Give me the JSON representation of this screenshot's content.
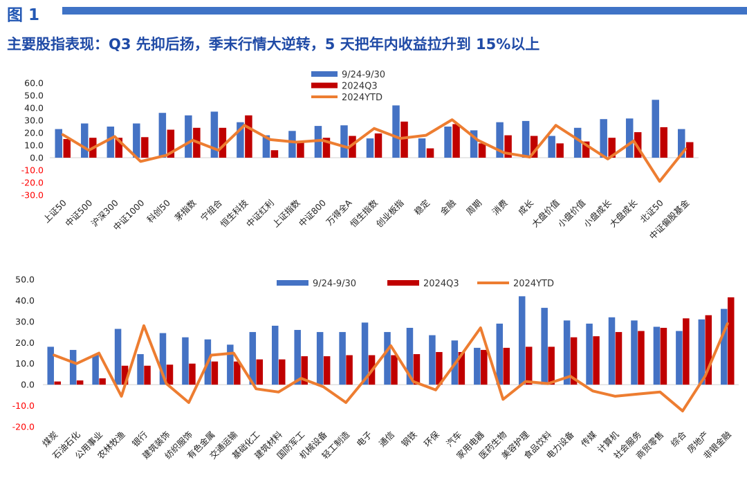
{
  "figure_label": "图 1",
  "headline": "主要股指表现：Q3 先抑后扬，季末行情大逆转，5 天把年内收益拉升到 15%以上",
  "colors": {
    "blue": "#4472C4",
    "red": "#C00000",
    "orange": "#ED7D31",
    "title": "#1F4AA6",
    "axis_red": "#FF0000"
  },
  "chart_data": [
    {
      "type": "bar",
      "ylim": [
        -30,
        60
      ],
      "yticks": [
        "60.0",
        "50.0",
        "40.0",
        "30.0",
        "20.0",
        "10.0",
        "0.0",
        "-10.0",
        "-20.0",
        "-30.0"
      ],
      "legend_position": "top-center",
      "categories": [
        "上证50",
        "中证500",
        "沪深300",
        "中证1000",
        "科创50",
        "茅指数",
        "宁组合",
        "恒生科技",
        "中证红利",
        "上证指数",
        "中证800",
        "万得全A",
        "恒生指数",
        "创业板指",
        "稳定",
        "金融",
        "周期",
        "消费",
        "成长",
        "大盘价值",
        "小盘价值",
        "小盘成长",
        "大盘成长",
        "北证50",
        "中证偏股基金"
      ],
      "series": [
        {
          "name": "9/24-9/30",
          "type": "bar",
          "values": [
            23.0,
            27.5,
            25.0,
            27.5,
            36.0,
            34.0,
            37.0,
            28.5,
            18.0,
            21.5,
            25.5,
            26.0,
            15.5,
            42.0,
            15.5,
            25.0,
            22.0,
            28.5,
            29.5,
            17.5,
            24.0,
            31.0,
            31.5,
            46.5,
            23.0
          ]
        },
        {
          "name": "2024Q3",
          "type": "bar",
          "values": [
            15.0,
            16.0,
            16.0,
            16.5,
            22.5,
            24.0,
            24.0,
            34.0,
            6.0,
            13.0,
            16.0,
            17.5,
            19.5,
            29.0,
            7.5,
            27.0,
            11.5,
            18.0,
            17.5,
            11.5,
            13.0,
            16.0,
            20.5,
            24.5,
            12.5
          ]
        },
        {
          "name": "2024YTD",
          "type": "line",
          "values": [
            18.5,
            6.0,
            17.0,
            -3.0,
            2.0,
            14.0,
            6.0,
            26.0,
            14.5,
            12.5,
            14.0,
            8.0,
            23.5,
            15.5,
            18.0,
            30.5,
            14.0,
            4.0,
            0.5,
            26.0,
            12.5,
            -1.0,
            13.5,
            -19.0,
            7.0
          ]
        }
      ]
    },
    {
      "type": "bar",
      "ylim": [
        -20,
        50
      ],
      "yticks": [
        "50.0",
        "40.0",
        "30.0",
        "20.0",
        "10.0",
        "0.0",
        "-10.0",
        "-20.0"
      ],
      "legend_position": "top-center",
      "categories": [
        "煤炭",
        "石油石化",
        "公用事业",
        "农林牧渔",
        "银行",
        "建筑装饰",
        "纺织服饰",
        "有色金属",
        "交通运输",
        "基础化工",
        "建筑材料",
        "国防军工",
        "机械设备",
        "轻工制造",
        "电子",
        "通信",
        "钢铁",
        "环保",
        "汽车",
        "家用电器",
        "医药生物",
        "美容护理",
        "食品饮料",
        "电力设备",
        "传媒",
        "计算机",
        "社会服务",
        "商贸零售",
        "综合",
        "房地产",
        "非银金融"
      ],
      "series": [
        {
          "name": "9/24-9/30",
          "type": "bar",
          "values": [
            18.0,
            16.5,
            14.0,
            26.5,
            14.5,
            24.5,
            22.5,
            21.5,
            19.0,
            25.0,
            28.0,
            26.0,
            25.0,
            25.0,
            29.5,
            25.0,
            27.0,
            23.5,
            21.0,
            17.5,
            29.0,
            42.0,
            36.5,
            30.5,
            29.0,
            32.0,
            30.5,
            27.5,
            25.5,
            31.0,
            36.0
          ]
        },
        {
          "name": "2024Q3",
          "type": "bar",
          "values": [
            1.5,
            2.0,
            3.0,
            9.0,
            9.0,
            9.5,
            10.0,
            11.0,
            11.0,
            12.0,
            12.0,
            13.5,
            13.5,
            14.0,
            14.0,
            14.0,
            14.5,
            15.5,
            15.5,
            16.5,
            17.5,
            18.0,
            18.0,
            22.5,
            23.0,
            25.0,
            25.5,
            27.0,
            31.5,
            33.0,
            41.5
          ]
        },
        {
          "name": "2024YTD",
          "type": "line",
          "values": [
            14.0,
            10.0,
            15.0,
            -5.5,
            28.0,
            0.5,
            -8.5,
            14.0,
            15.0,
            -2.0,
            -3.5,
            3.0,
            -1.0,
            -8.5,
            4.5,
            18.5,
            1.5,
            -2.5,
            12.0,
            27.0,
            -7.0,
            1.5,
            0.5,
            4.0,
            -3.0,
            -5.5,
            -4.5,
            -3.5,
            -12.5,
            4.0,
            29.0
          ]
        }
      ]
    }
  ]
}
